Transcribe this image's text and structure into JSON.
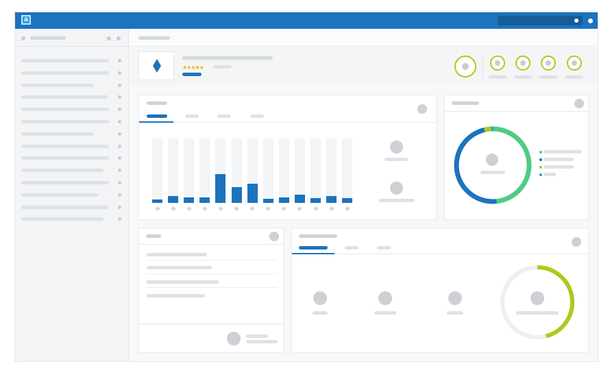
{
  "app": {
    "logo_glyph": "a",
    "accent": "#1d73bd",
    "ring_color": "#a8cc1c"
  },
  "product": {
    "rating_stars": "★★★★★",
    "rating": 4.5
  },
  "chart_data": [
    {
      "type": "bar",
      "categories": [
        "",
        "",
        "",
        "",
        "",
        "",
        "",
        "",
        "",
        "",
        "",
        "",
        ""
      ],
      "values": [
        5,
        11,
        8,
        8,
        45,
        24,
        30,
        6,
        9,
        13,
        7,
        11,
        7
      ],
      "ylim": [
        0,
        100
      ]
    },
    {
      "type": "pie",
      "values": [
        48,
        48,
        3,
        1
      ],
      "colors": [
        "#4fcb86",
        "#1d73bd",
        "#a8cc1c",
        "#2aa0d8"
      ]
    }
  ],
  "icons": [
    "logo-icon",
    "search-icon",
    "diamond-icon",
    "menu-icon"
  ]
}
